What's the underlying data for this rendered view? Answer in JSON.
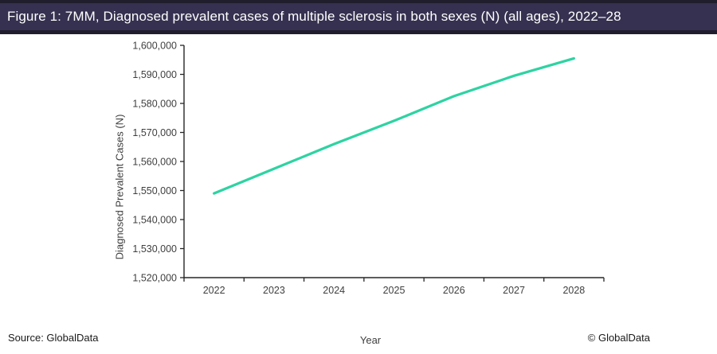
{
  "header": {
    "title": "Figure 1: 7MM, Diagnosed prevalent cases of multiple sclerosis in both sexes (N) (all ages), 2022–28"
  },
  "chart_data": {
    "type": "line",
    "title": "7MM, Diagnosed prevalent cases of multiple sclerosis in both sexes (N) (all ages), 2022–28",
    "x": [
      2022,
      2023,
      2024,
      2025,
      2026,
      2027,
      2028
    ],
    "series": [
      {
        "name": "Diagnosed prevalent cases",
        "values": [
          1549000,
          1557500,
          1566000,
          1574000,
          1582500,
          1589500,
          1595500
        ]
      }
    ],
    "xlabel": "Year",
    "ylabel": "Diagnosed Prevalent Cases (N)",
    "ylim": [
      1520000,
      1600000
    ],
    "y_tick_step": 10000,
    "y_tick_labels": [
      "1,520,000",
      "1,530,000",
      "1,540,000",
      "1,550,000",
      "1,560,000",
      "1,570,000",
      "1,580,000",
      "1,590,000",
      "1,600,000"
    ],
    "grid": false,
    "legend": false,
    "line_color": "#2ed3a2",
    "axis_color": "#262626",
    "label_color": "#3f3f3f"
  },
  "footer": {
    "source": "Source: GlobalData",
    "copyright": "© GlobalData"
  }
}
